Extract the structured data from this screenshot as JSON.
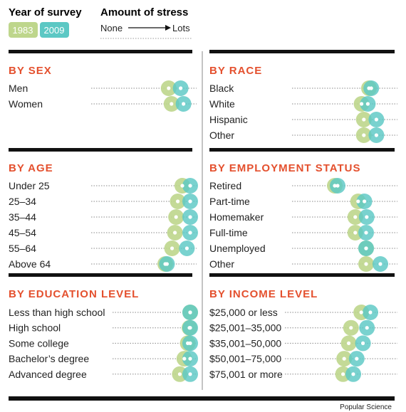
{
  "legend": {
    "year_title": "Year of survey",
    "year_a": "1983",
    "year_b": "2009",
    "stress_title": "Amount of stress",
    "stress_low": "None",
    "stress_high": "Lots"
  },
  "colors": {
    "year_a": "#bed68c",
    "year_b": "#5cc8c4",
    "overlap": "#62ab7e",
    "heading": "#e4502e",
    "rule": "#111111"
  },
  "credit": "Popular Science",
  "chart_data": {
    "type": "scatter",
    "description_scale": "stress position 0 (None) to 1 (Lots)",
    "panels": [
      {
        "title": "BY SEX",
        "categories": [
          "Men",
          "Women"
        ],
        "series": [
          {
            "name": "1983",
            "values": [
              0.86,
              0.91
            ]
          },
          {
            "name": "2009",
            "values": [
              1.07,
              1.12
            ]
          }
        ]
      },
      {
        "title": "BY RACE",
        "categories": [
          "Black",
          "White",
          "Hispanic",
          "Other"
        ],
        "series": [
          {
            "name": "1983",
            "values": [
              0.85,
              0.72,
              0.76,
              0.76
            ]
          },
          {
            "name": "2009",
            "values": [
              0.89,
              0.83,
              0.98,
              0.98
            ]
          }
        ]
      },
      {
        "title": "BY AGE",
        "categories": [
          "Under 25",
          "25–34",
          "35–44",
          "45–54",
          "55–64",
          "Above 64"
        ],
        "series": [
          {
            "name": "1983",
            "values": [
              1.1,
              1.02,
              0.99,
              0.97,
              0.92,
              0.8
            ]
          },
          {
            "name": "2009",
            "values": [
              1.31,
              1.35,
              1.29,
              1.35,
              1.18,
              0.83
            ]
          }
        ]
      },
      {
        "title": "BY EMPLOYMENT STATUS",
        "categories": [
          "Retired",
          "Part-time",
          "Homemaker",
          "Full-time",
          "Unemployed",
          "Other"
        ],
        "series": [
          {
            "name": "1983",
            "values": [
              0.25,
              0.66,
              0.61,
              0.61,
              0.8,
              0.8
            ]
          },
          {
            "name": "2009",
            "values": [
              0.3,
              0.77,
              0.81,
              0.8,
              0.8,
              1.05
            ]
          }
        ]
      },
      {
        "title": "BY EDUCATION LEVEL",
        "categories": [
          "Less than high school",
          "High school",
          "Some college",
          "Bachelor’s degree",
          "Advanced degree"
        ],
        "series": [
          {
            "name": "1983",
            "values": [
              0.92,
              0.85,
              0.82,
              0.76,
              0.68
            ]
          },
          {
            "name": "2009",
            "values": [
              1.5,
              1.23,
              1.19,
              1.08,
              1.01
            ]
          }
        ]
      },
      {
        "title": "BY INCOME LEVEL",
        "categories": [
          "$25,000 or less",
          "$25,001–35,000",
          "$35,001–50,000",
          "$50,001–75,000",
          "$75,001 or more"
        ],
        "series": [
          {
            "name": "1983",
            "values": [
              0.84,
              0.66,
              0.62,
              0.54,
              0.52
            ]
          },
          {
            "name": "2009",
            "values": [
              1.0,
              0.94,
              0.87,
              0.76,
              0.7
            ]
          }
        ]
      }
    ]
  }
}
